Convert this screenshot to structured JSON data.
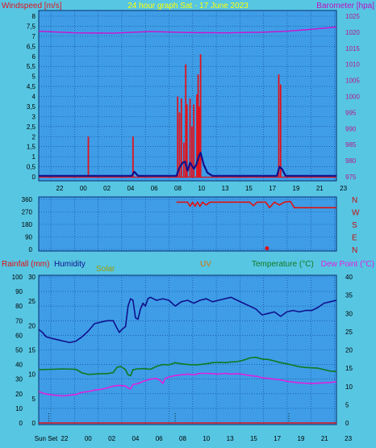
{
  "colors": {
    "background": "#57C6E3",
    "panel": "#3E9DE6",
    "grid": "#0D3C8C",
    "windspeed": "#E0141E",
    "windspeed_avg": "#10108C",
    "barometer": "#D010D0",
    "wind_direction": "#E01010",
    "humidity": "#10108C",
    "temperature": "#107A20",
    "dew_point": "#E020E0",
    "rainfall": "#E01010",
    "solar_label": "#9A9A00",
    "uv_label": "#E07000",
    "title": "#FFFF00"
  },
  "header": {
    "title": "24 hour graph Sat - 17 June 2023"
  },
  "x_ticks": [
    "22",
    "00",
    "02",
    "04",
    "06",
    "08",
    "10",
    "13",
    "15",
    "17",
    "19",
    "21",
    "23"
  ],
  "x_ticks_bottom": [
    "Sun Set",
    "22",
    "00",
    "02",
    "04",
    "06",
    "08",
    "10",
    "13",
    "15",
    "17",
    "19",
    "21",
    "23"
  ],
  "chart_data": [
    {
      "type": "line",
      "title": "24 hour graph Sat - 17 June 2023",
      "y_left_label": "Windspeed [m/s]",
      "y_right_label": "Barometer [hpa]",
      "y_left_ticks": [
        "8",
        "7,5",
        "7",
        "6,5",
        "6",
        "5,5",
        "5",
        "4,5",
        "4",
        "3,5",
        "3",
        "2,5",
        "2",
        "1,5",
        "1",
        "0,5",
        "0"
      ],
      "y_right_ticks": [
        "1025",
        "1020",
        "1015",
        "1010",
        "1005",
        "1000",
        "995",
        "990",
        "985",
        "980",
        "975"
      ],
      "ylim_left": [
        0,
        8
      ],
      "ylim_right": [
        975,
        1025
      ],
      "x_hours": [
        0,
        24
      ],
      "series": [
        {
          "name": "Windspeed",
          "kind": "gust_bars",
          "points": [
            [
              4.0,
              2.0
            ],
            [
              7.6,
              2.0
            ],
            [
              11.2,
              4.0
            ],
            [
              11.35,
              3.2
            ],
            [
              11.5,
              3.9
            ],
            [
              11.7,
              1.7
            ],
            [
              11.85,
              5.6
            ],
            [
              11.95,
              3.6
            ],
            [
              12.2,
              3.9
            ],
            [
              12.35,
              2.5
            ],
            [
              12.5,
              3.6
            ],
            [
              12.75,
              4.1
            ],
            [
              12.85,
              5.1
            ],
            [
              12.95,
              3.5
            ],
            [
              13.05,
              6.1
            ],
            [
              19.35,
              5.1
            ],
            [
              19.5,
              4.6
            ]
          ]
        },
        {
          "name": "Windspeed average",
          "kind": "line",
          "points": [
            [
              0,
              0.05
            ],
            [
              7.5,
              0.05
            ],
            [
              7.7,
              0.25
            ],
            [
              8.0,
              0.05
            ],
            [
              11.1,
              0.05
            ],
            [
              11.3,
              0.4
            ],
            [
              11.6,
              0.7
            ],
            [
              11.8,
              0.75
            ],
            [
              12.0,
              0.3
            ],
            [
              12.2,
              0.7
            ],
            [
              12.5,
              0.4
            ],
            [
              12.7,
              0.6
            ],
            [
              12.9,
              1.0
            ],
            [
              13.05,
              1.2
            ],
            [
              13.3,
              0.6
            ],
            [
              13.6,
              0.2
            ],
            [
              14.0,
              0.05
            ],
            [
              19.2,
              0.05
            ],
            [
              19.4,
              0.5
            ],
            [
              19.6,
              0.4
            ],
            [
              19.9,
              0.05
            ],
            [
              24,
              0.05
            ]
          ]
        },
        {
          "name": "Barometer",
          "kind": "line",
          "axis": "right",
          "points": [
            [
              0,
              1020.3
            ],
            [
              3,
              1019.8
            ],
            [
              6,
              1019.7
            ],
            [
              9,
              1020.2
            ],
            [
              12,
              1019.9
            ],
            [
              15,
              1019.8
            ],
            [
              18,
              1020.0
            ],
            [
              20,
              1020.3
            ],
            [
              22,
              1020.9
            ],
            [
              24,
              1021.6
            ]
          ]
        }
      ]
    },
    {
      "type": "line",
      "title": "",
      "y_left_ticks": [
        "360",
        "270",
        "180",
        "90",
        "0"
      ],
      "y_right_labels": [
        "N",
        "W",
        "S",
        "E",
        "N"
      ],
      "ylim_left": [
        0,
        360
      ],
      "x_hours": [
        0,
        24
      ],
      "series": [
        {
          "name": "Wind direction",
          "points": [
            [
              11.1,
              340
            ],
            [
              12.0,
              340
            ],
            [
              12.2,
              310
            ],
            [
              12.4,
              340
            ],
            [
              12.6,
              310
            ],
            [
              12.8,
              340
            ],
            [
              13.0,
              310
            ],
            [
              13.2,
              340
            ],
            [
              13.5,
              320
            ],
            [
              13.8,
              340
            ],
            [
              17.0,
              340
            ],
            [
              17.3,
              315
            ],
            [
              17.6,
              340
            ],
            [
              18.3,
              340
            ],
            [
              18.6,
              300
            ],
            [
              19.0,
              340
            ],
            [
              19.4,
              320
            ],
            [
              19.8,
              340
            ],
            [
              20.3,
              345
            ],
            [
              20.6,
              300
            ],
            [
              21.0,
              300
            ],
            [
              24,
              300
            ]
          ],
          "marker": [
            18.4,
            8
          ]
        }
      ]
    },
    {
      "type": "line",
      "title": "",
      "labels": {
        "rainfall": "Rainfall (mm)",
        "humidity": "Humidity",
        "solar": "Solar",
        "uv": "UV",
        "temperature": "Temperature (°C)",
        "dew_point": "Dew Point (°C)"
      },
      "y_left_humidity_ticks": [
        "100",
        "90",
        "80",
        "70",
        "60",
        "50",
        "40",
        "30",
        "20",
        "10",
        "0"
      ],
      "y_left_rain_ticks": [
        "30",
        "25",
        "20",
        "15",
        "10",
        "5",
        "0"
      ],
      "y_right_temp_ticks": [
        "40",
        "35",
        "30",
        "25",
        "20",
        "15",
        "10",
        "5",
        "0"
      ],
      "ylim_humidity": [
        0,
        100
      ],
      "ylim_rain": [
        0,
        30
      ],
      "ylim_temp": [
        0,
        40
      ],
      "x_hours": [
        0,
        24
      ],
      "series": [
        {
          "name": "Humidity",
          "axis": "humidity",
          "points": [
            [
              0,
              64
            ],
            [
              0.3,
              62
            ],
            [
              0.6,
              59
            ],
            [
              1.0,
              58
            ],
            [
              1.5,
              57
            ],
            [
              2.0,
              56
            ],
            [
              2.5,
              55
            ],
            [
              3.0,
              56
            ],
            [
              3.5,
              59
            ],
            [
              4.0,
              63
            ],
            [
              4.5,
              68
            ],
            [
              5.0,
              69
            ],
            [
              5.5,
              70
            ],
            [
              6.0,
              70
            ],
            [
              6.3,
              65
            ],
            [
              6.5,
              62
            ],
            [
              6.7,
              64
            ],
            [
              7.0,
              66
            ],
            [
              7.2,
              80
            ],
            [
              7.4,
              85
            ],
            [
              7.6,
              84
            ],
            [
              7.8,
              72
            ],
            [
              8.0,
              71
            ],
            [
              8.2,
              78
            ],
            [
              8.4,
              82
            ],
            [
              8.6,
              80
            ],
            [
              8.8,
              85
            ],
            [
              9.0,
              86
            ],
            [
              9.5,
              84
            ],
            [
              10.0,
              85
            ],
            [
              10.5,
              84
            ],
            [
              11.0,
              80
            ],
            [
              11.5,
              83
            ],
            [
              12.0,
              84
            ],
            [
              12.5,
              82
            ],
            [
              13.0,
              84
            ],
            [
              13.5,
              85
            ],
            [
              14.0,
              83
            ],
            [
              14.5,
              84
            ],
            [
              15.0,
              85
            ],
            [
              15.5,
              86
            ],
            [
              16.0,
              84
            ],
            [
              16.5,
              82
            ],
            [
              17.0,
              80
            ],
            [
              17.5,
              78
            ],
            [
              18.0,
              74
            ],
            [
              18.5,
              75
            ],
            [
              19.0,
              76
            ],
            [
              19.5,
              73
            ],
            [
              20.0,
              76
            ],
            [
              20.5,
              77
            ],
            [
              21.0,
              76
            ],
            [
              21.5,
              77
            ],
            [
              22.0,
              77
            ],
            [
              22.5,
              79
            ],
            [
              23.0,
              82
            ],
            [
              23.5,
              83
            ],
            [
              24,
              84
            ]
          ]
        },
        {
          "name": "Temperature",
          "axis": "temp",
          "points": [
            [
              0,
              14.6
            ],
            [
              1.0,
              14.7
            ],
            [
              2.0,
              14.8
            ],
            [
              3.0,
              14.7
            ],
            [
              3.5,
              13.7
            ],
            [
              4.0,
              13.3
            ],
            [
              4.5,
              13.4
            ],
            [
              5.0,
              13.5
            ],
            [
              5.5,
              13.5
            ],
            [
              6.0,
              13.8
            ],
            [
              6.3,
              15.2
            ],
            [
              6.6,
              15.5
            ],
            [
              7.0,
              14.6
            ],
            [
              7.2,
              13.2
            ],
            [
              7.4,
              12.9
            ],
            [
              7.6,
              14.6
            ],
            [
              8.0,
              14.8
            ],
            [
              8.5,
              14.9
            ],
            [
              9.0,
              14.7
            ],
            [
              9.5,
              15.5
            ],
            [
              10.0,
              16.0
            ],
            [
              10.5,
              15.9
            ],
            [
              11.0,
              16.5
            ],
            [
              11.5,
              16.2
            ],
            [
              12.0,
              16.0
            ],
            [
              12.5,
              15.9
            ],
            [
              13.0,
              16.0
            ],
            [
              13.5,
              16.2
            ],
            [
              14.0,
              16.5
            ],
            [
              14.5,
              16.6
            ],
            [
              15.0,
              16.5
            ],
            [
              15.5,
              16.7
            ],
            [
              16.0,
              16.8
            ],
            [
              16.5,
              17.2
            ],
            [
              17.0,
              17.8
            ],
            [
              17.5,
              18.0
            ],
            [
              18.0,
              17.5
            ],
            [
              18.5,
              17.4
            ],
            [
              19.0,
              17.0
            ],
            [
              19.5,
              16.5
            ],
            [
              20.0,
              16.2
            ],
            [
              20.5,
              15.8
            ],
            [
              21.0,
              15.4
            ],
            [
              21.5,
              15.2
            ],
            [
              22.0,
              15.1
            ],
            [
              22.5,
              15.0
            ],
            [
              23.0,
              14.6
            ],
            [
              23.5,
              14.2
            ],
            [
              24,
              14.1
            ]
          ]
        },
        {
          "name": "Dew Point",
          "axis": "temp",
          "points": [
            [
              0,
              8.6
            ],
            [
              0.5,
              8.0
            ],
            [
              1.0,
              7.7
            ],
            [
              2.0,
              7.4
            ],
            [
              2.5,
              7.6
            ],
            [
              3.0,
              7.8
            ],
            [
              3.5,
              8.4
            ],
            [
              4.0,
              8.6
            ],
            [
              4.5,
              9.0
            ],
            [
              5.0,
              9.2
            ],
            [
              5.5,
              9.6
            ],
            [
              6.0,
              10.1
            ],
            [
              6.5,
              10.3
            ],
            [
              7.0,
              10.1
            ],
            [
              7.2,
              9.6
            ],
            [
              7.4,
              9.3
            ],
            [
              7.6,
              10.5
            ],
            [
              8.0,
              10.8
            ],
            [
              8.5,
              11.5
            ],
            [
              9.0,
              12.0
            ],
            [
              9.5,
              12.2
            ],
            [
              9.8,
              11.6
            ],
            [
              10.0,
              10.8
            ],
            [
              10.2,
              12.2
            ],
            [
              10.5,
              12.6
            ],
            [
              11.0,
              13.0
            ],
            [
              11.5,
              13.2
            ],
            [
              12.0,
              13.4
            ],
            [
              12.5,
              13.2
            ],
            [
              13.0,
              13.6
            ],
            [
              13.5,
              13.6
            ],
            [
              14.0,
              13.5
            ],
            [
              14.5,
              13.4
            ],
            [
              15.0,
              13.6
            ],
            [
              15.5,
              13.4
            ],
            [
              16.0,
              13.5
            ],
            [
              16.5,
              13.3
            ],
            [
              17.0,
              13.0
            ],
            [
              17.5,
              12.8
            ],
            [
              18.0,
              12.4
            ],
            [
              18.5,
              12.2
            ],
            [
              19.0,
              12.0
            ],
            [
              19.5,
              11.8
            ],
            [
              20.0,
              11.4
            ],
            [
              20.5,
              11.2
            ],
            [
              21.0,
              11.0
            ],
            [
              21.5,
              10.9
            ],
            [
              22.0,
              10.8
            ],
            [
              22.5,
              10.9
            ],
            [
              23.0,
              11.0
            ],
            [
              23.5,
              11.1
            ],
            [
              24,
              11.3
            ]
          ]
        },
        {
          "name": "Rainfall",
          "axis": "rain",
          "points": [
            [
              0,
              0
            ],
            [
              24,
              0
            ]
          ]
        }
      ]
    }
  ]
}
